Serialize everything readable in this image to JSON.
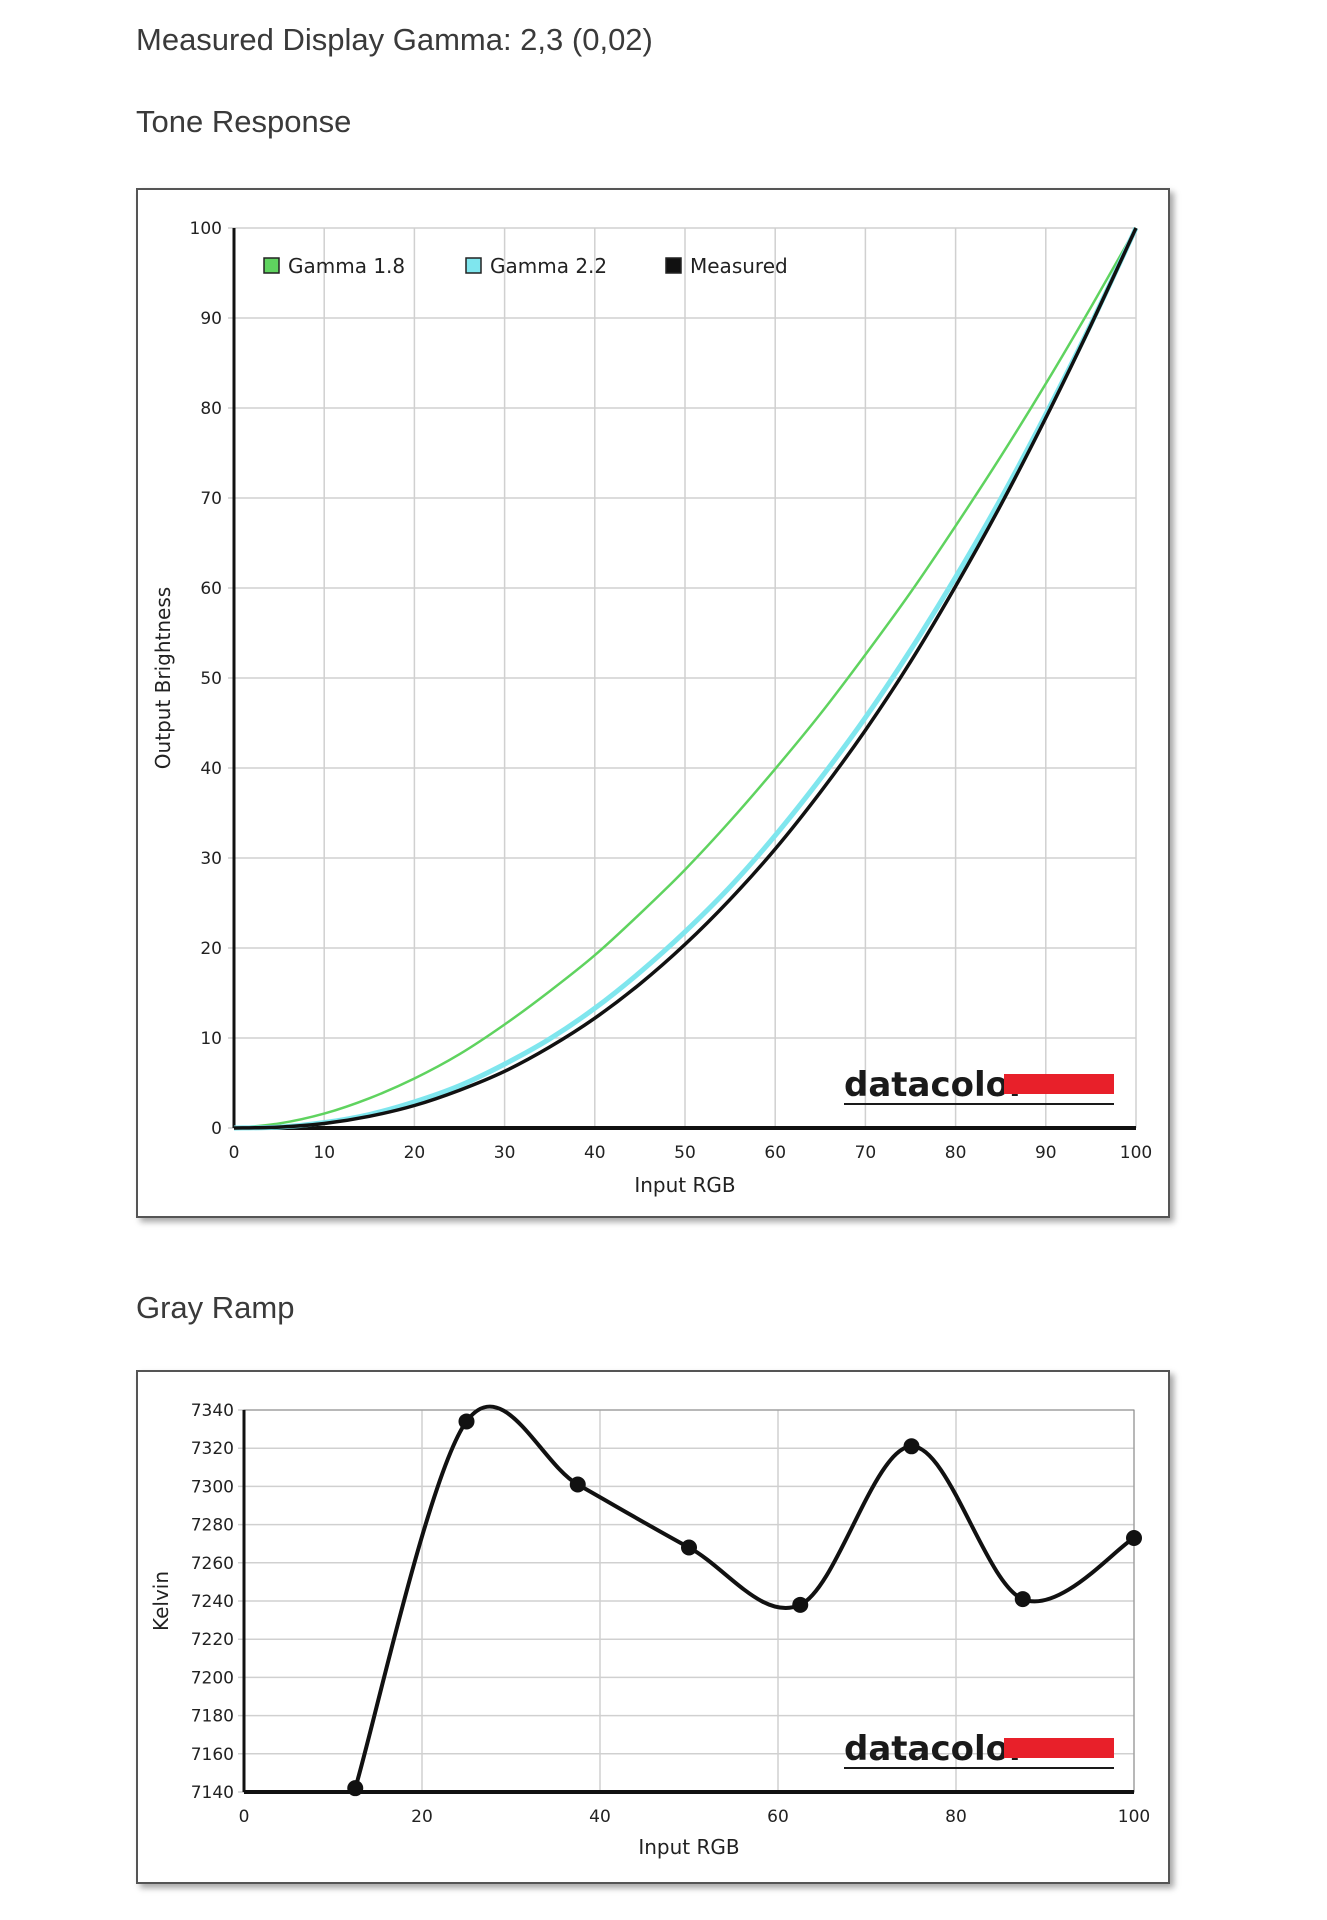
{
  "headings": {
    "gamma": "Measured Display Gamma: 2,3 (0,02)",
    "tone": "Tone Response",
    "gray": "Gray Ramp"
  },
  "logo_text": "datacolor",
  "colors": {
    "gamma18": "#5fd35f",
    "gamma22": "#7fe6ee",
    "measured": "#111111",
    "logo_bar": "#e8202a",
    "grid": "#d0d0d0"
  },
  "chart_data": [
    {
      "type": "line",
      "xlabel": "Input RGB",
      "ylabel": "Output Brightness",
      "xlim": [
        0,
        100
      ],
      "ylim": [
        0,
        100
      ],
      "xticks": [
        0,
        10,
        20,
        30,
        40,
        50,
        60,
        70,
        80,
        90,
        100
      ],
      "yticks": [
        0,
        10,
        20,
        30,
        40,
        50,
        60,
        70,
        80,
        90,
        100
      ],
      "grid": true,
      "legend_position": "top-left",
      "series": [
        {
          "name": "Gamma 1.8",
          "color": "#5fd35f",
          "x": [
            0,
            5,
            10,
            15,
            20,
            25,
            30,
            35,
            40,
            45,
            50,
            55,
            60,
            65,
            70,
            75,
            80,
            85,
            90,
            95,
            100
          ],
          "y": [
            0,
            0.5,
            1.6,
            3.3,
            5.5,
            8.2,
            11.5,
            15.2,
            19.2,
            23.8,
            28.7,
            34.1,
            39.9,
            46.0,
            52.6,
            59.5,
            66.9,
            74.6,
            82.7,
            91.2,
            100
          ]
        },
        {
          "name": "Gamma 2.2",
          "color": "#7fe6ee",
          "x": [
            0,
            5,
            10,
            15,
            20,
            25,
            30,
            35,
            40,
            45,
            50,
            55,
            60,
            65,
            70,
            75,
            80,
            85,
            90,
            95,
            100
          ],
          "y": [
            0,
            0.1,
            0.6,
            1.5,
            2.9,
            4.7,
            7.1,
            9.9,
            13.3,
            17.3,
            21.8,
            26.8,
            32.5,
            38.8,
            45.6,
            53.1,
            61.2,
            69.9,
            79.3,
            89.3,
            100
          ]
        },
        {
          "name": "Measured",
          "color": "#111111",
          "x": [
            0,
            5,
            10,
            15,
            20,
            25,
            30,
            35,
            40,
            45,
            50,
            55,
            60,
            65,
            70,
            75,
            80,
            85,
            90,
            95,
            100
          ],
          "y": [
            0,
            0.1,
            0.5,
            1.3,
            2.5,
            4.2,
            6.3,
            9.0,
            12.2,
            16.0,
            20.4,
            25.4,
            31.0,
            37.3,
            44.2,
            51.8,
            60.2,
            69.2,
            78.9,
            89.2,
            100
          ]
        }
      ]
    },
    {
      "type": "line",
      "xlabel": "Input RGB",
      "ylabel": "Kelvin",
      "xlim": [
        0,
        100
      ],
      "ylim": [
        7140,
        7340
      ],
      "xticks": [
        0,
        20,
        40,
        60,
        80,
        100
      ],
      "yticks": [
        7140,
        7160,
        7180,
        7200,
        7220,
        7240,
        7260,
        7280,
        7300,
        7320,
        7340
      ],
      "grid": true,
      "series": [
        {
          "name": "",
          "color": "#111111",
          "x": [
            12.5,
            25,
            37.5,
            50,
            62.5,
            75,
            87.5,
            100
          ],
          "y": [
            7142,
            7334,
            7301,
            7268,
            7238,
            7321,
            7241,
            7273
          ]
        }
      ]
    }
  ]
}
